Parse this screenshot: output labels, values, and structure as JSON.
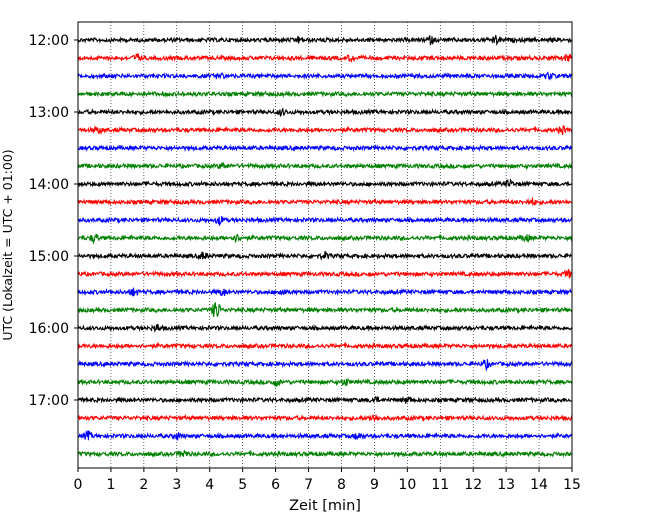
{
  "chart_data": {
    "type": "line",
    "title": "",
    "xlabel": "Zeit  [min]",
    "ylabel": "UTC (Lokalzeit = UTC + 01:00)",
    "xlim": [
      0,
      15
    ],
    "x_ticks": [
      "0",
      "1",
      "2",
      "3",
      "4",
      "5",
      "6",
      "7",
      "8",
      "9",
      "10",
      "11",
      "12",
      "13",
      "14",
      "15"
    ],
    "y_ticks": [
      "12:00",
      "13:00",
      "14:00",
      "15:00",
      "16:00",
      "17:00"
    ],
    "grid": "vertical dotted",
    "trace_start": "12:00",
    "trace_interval_min": 15,
    "trace_count": 24,
    "color_cycle": [
      "#000000",
      "#ff0000",
      "#0000ff",
      "#008000"
    ],
    "events": [
      {
        "trace": 0,
        "x": 6.7,
        "amp": 0.7
      },
      {
        "trace": 0,
        "x": 10.7,
        "amp": 0.8
      },
      {
        "trace": 0,
        "x": 12.7,
        "amp": 0.9
      },
      {
        "trace": 1,
        "x": 1.8,
        "amp": 0.8
      },
      {
        "trace": 1,
        "x": 8.3,
        "amp": 0.7
      },
      {
        "trace": 1,
        "x": 14.9,
        "amp": 0.9
      },
      {
        "trace": 2,
        "x": 4.3,
        "amp": 0.6
      },
      {
        "trace": 2,
        "x": 14.3,
        "amp": 0.7
      },
      {
        "trace": 4,
        "x": 6.2,
        "amp": 0.7
      },
      {
        "trace": 5,
        "x": 0.6,
        "amp": 0.7
      },
      {
        "trace": 5,
        "x": 14.7,
        "amp": 0.8
      },
      {
        "trace": 7,
        "x": 4.4,
        "amp": 0.7
      },
      {
        "trace": 8,
        "x": 13.1,
        "amp": 0.8
      },
      {
        "trace": 9,
        "x": 13.8,
        "amp": 0.7
      },
      {
        "trace": 10,
        "x": 4.3,
        "amp": 0.9
      },
      {
        "trace": 11,
        "x": 0.5,
        "amp": 1.0
      },
      {
        "trace": 11,
        "x": 4.8,
        "amp": 0.8
      },
      {
        "trace": 11,
        "x": 13.6,
        "amp": 0.8
      },
      {
        "trace": 12,
        "x": 3.8,
        "amp": 0.8
      },
      {
        "trace": 12,
        "x": 7.5,
        "amp": 0.7
      },
      {
        "trace": 13,
        "x": 14.9,
        "amp": 0.8
      },
      {
        "trace": 14,
        "x": 1.7,
        "amp": 0.9
      },
      {
        "trace": 14,
        "x": 4.4,
        "amp": 0.8
      },
      {
        "trace": 14,
        "x": 6.2,
        "amp": 0.9
      },
      {
        "trace": 15,
        "x": 4.2,
        "amp": 2.4
      },
      {
        "trace": 16,
        "x": 2.4,
        "amp": 0.8
      },
      {
        "trace": 18,
        "x": 12.4,
        "amp": 0.9
      },
      {
        "trace": 19,
        "x": 6.0,
        "amp": 0.8
      },
      {
        "trace": 19,
        "x": 8.1,
        "amp": 0.8
      },
      {
        "trace": 20,
        "x": 9.0,
        "amp": 0.7
      },
      {
        "trace": 20,
        "x": 10.0,
        "amp": 0.7
      },
      {
        "trace": 21,
        "x": 9.0,
        "amp": 0.8
      },
      {
        "trace": 22,
        "x": 0.3,
        "amp": 0.9
      },
      {
        "trace": 22,
        "x": 3.0,
        "amp": 0.8
      },
      {
        "trace": 22,
        "x": 8.5,
        "amp": 0.7
      },
      {
        "trace": 23,
        "x": 3.2,
        "amp": 0.9
      }
    ]
  }
}
